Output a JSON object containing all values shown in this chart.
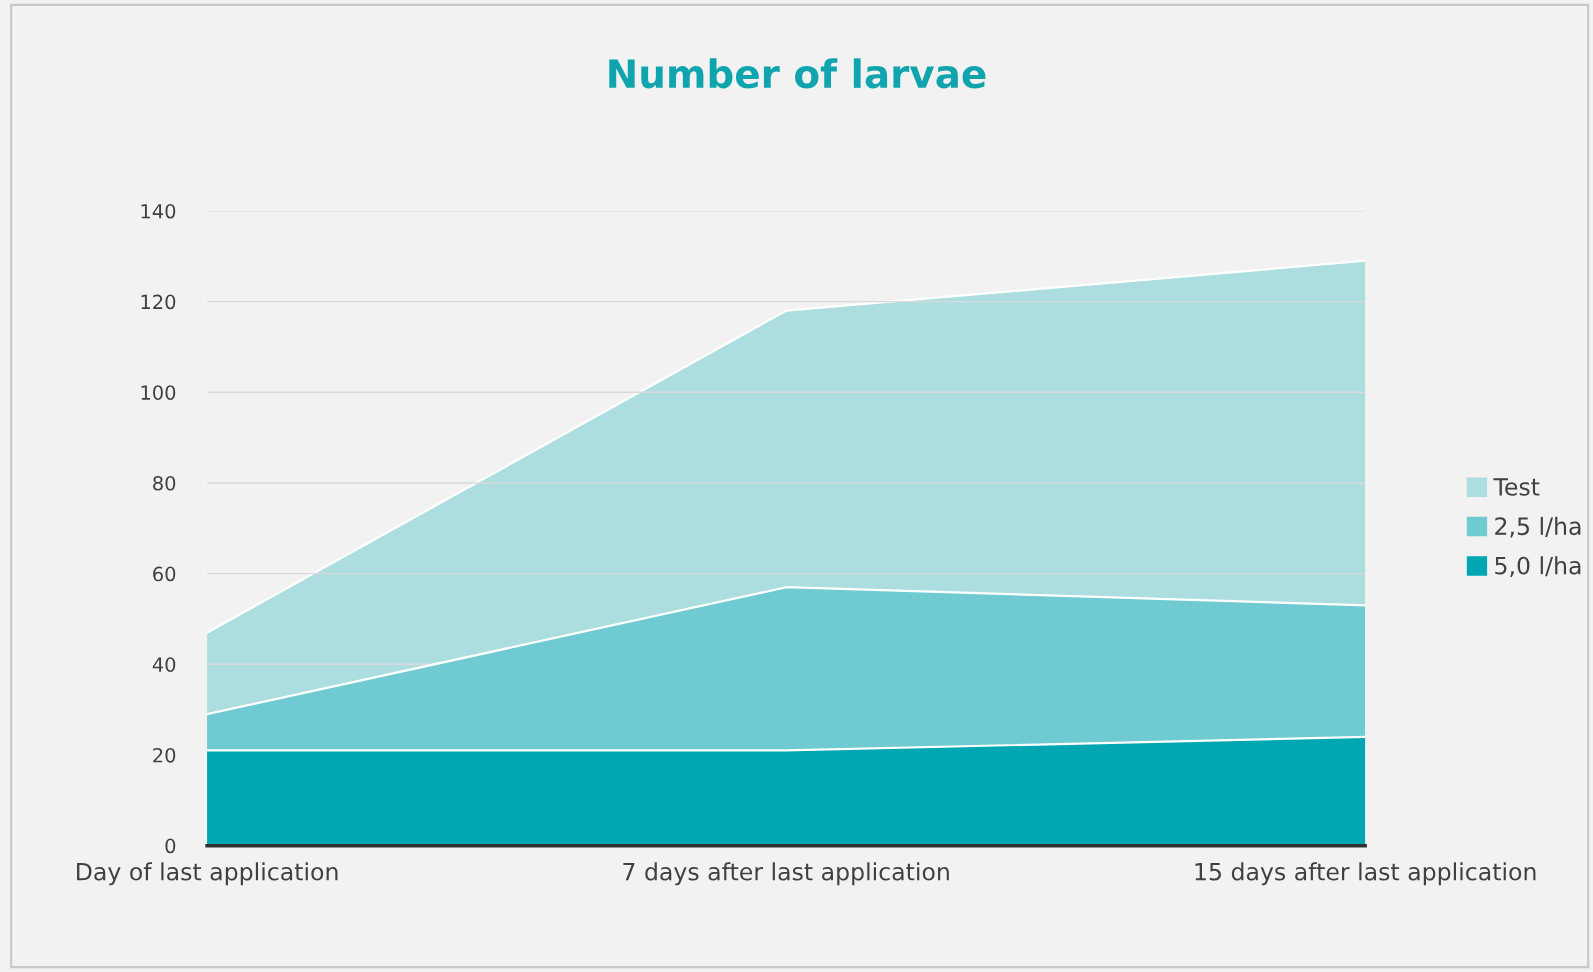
{
  "chart_data": {
    "type": "area",
    "title": "Number of larvae",
    "categories": [
      "Day of last application",
      "7 days after last application",
      "15 days after last application"
    ],
    "series": [
      {
        "name": "Test",
        "color": "#acdee0",
        "values": [
          47,
          118,
          129
        ]
      },
      {
        "name": "2,5 l/ha",
        "color": "#6fcbd1",
        "values": [
          29,
          57,
          53
        ]
      },
      {
        "name": "5,0 l/ha",
        "color": "#00a6b2",
        "values": [
          21,
          21,
          24
        ]
      }
    ],
    "ylim": [
      0,
      140
    ],
    "yticks": [
      0,
      20,
      40,
      60,
      80,
      100,
      120,
      140
    ],
    "grid": "y",
    "legend": "right"
  }
}
